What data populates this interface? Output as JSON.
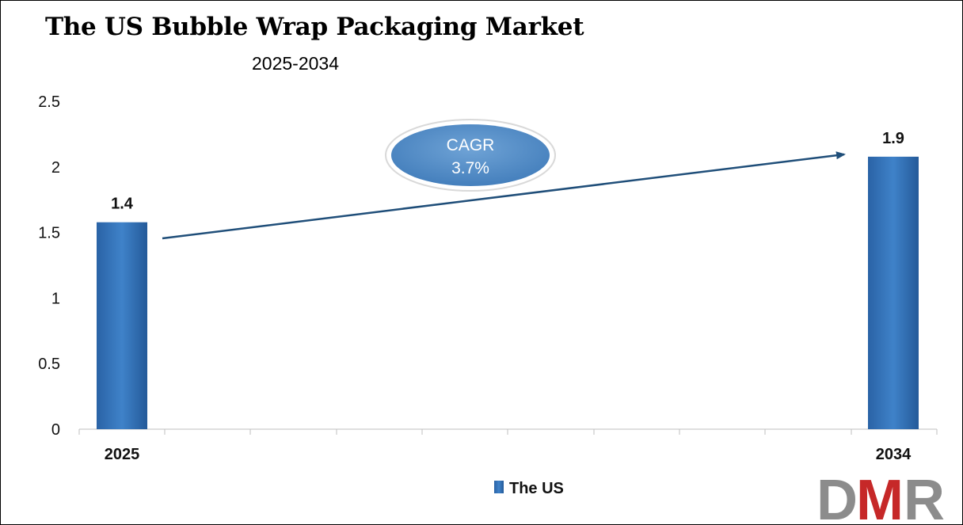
{
  "chart_data": {
    "type": "bar",
    "title": "The US Bubble Wrap Packaging Market",
    "subtitle": "2025-2034",
    "categories": [
      "2025",
      "2034"
    ],
    "series": [
      {
        "name": "The US",
        "values": [
          1.4,
          1.9
        ],
        "labels": [
          "1.4",
          "1.9"
        ],
        "color": "#2f6fb5"
      }
    ],
    "ylim": [
      0,
      2.5
    ],
    "yticks": [
      "0",
      "0.5",
      "1",
      "1.5",
      "2",
      "2.5"
    ],
    "grid": false,
    "legend": "bottom",
    "annotation": {
      "line1": "CAGR",
      "line2": "3.7%"
    }
  },
  "logo": {
    "d": "D",
    "m": "M",
    "r": "R",
    "colors": {
      "d": "#8c8c8c",
      "m": "#c62828",
      "r": "#8c8c8c"
    }
  }
}
